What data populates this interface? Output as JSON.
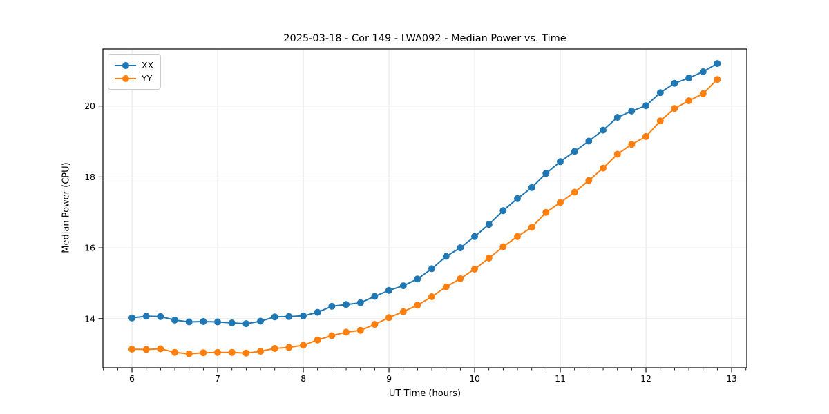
{
  "chart_data": {
    "type": "line",
    "title": "2025-03-18 - Cor 149 - LWA092 - Median Power vs. Time",
    "xlabel": "UT Time (hours)",
    "ylabel": "Median Power (CPU)",
    "xlim": [
      5.661,
      13.177
    ],
    "ylim": [
      12.615,
      21.61
    ],
    "xticks": [
      6,
      7,
      8,
      9,
      10,
      11,
      12,
      13
    ],
    "yticks": [
      14,
      16,
      18,
      20
    ],
    "x_minor_step_minutes": 10,
    "grid": true,
    "legend_position": "upper left",
    "grid_color": "#e4e4e4",
    "axis_color": "#000000",
    "x": [
      6.0,
      6.167,
      6.333,
      6.5,
      6.667,
      6.833,
      7.0,
      7.167,
      7.333,
      7.5,
      7.667,
      7.833,
      8.0,
      8.167,
      8.333,
      8.5,
      8.667,
      8.833,
      9.0,
      9.167,
      9.333,
      9.5,
      9.667,
      9.833,
      10.0,
      10.167,
      10.333,
      10.5,
      10.667,
      10.833,
      11.0,
      11.167,
      11.333,
      11.5,
      11.667,
      11.833,
      12.0,
      12.167,
      12.333,
      12.5,
      12.667,
      12.833
    ],
    "series": [
      {
        "name": "XX",
        "color": "#1f77b4",
        "values": [
          14.02,
          14.07,
          14.06,
          13.96,
          13.91,
          13.92,
          13.91,
          13.88,
          13.86,
          13.93,
          14.05,
          14.06,
          14.08,
          14.18,
          14.35,
          14.4,
          14.45,
          14.63,
          14.8,
          14.93,
          15.12,
          15.41,
          15.76,
          16.0,
          16.32,
          16.66,
          17.05,
          17.39,
          17.7,
          18.1,
          18.43,
          18.72,
          19.01,
          19.32,
          19.68,
          19.86,
          20.01,
          20.38,
          20.64,
          20.79,
          20.97,
          21.2
        ]
      },
      {
        "name": "YY",
        "color": "#ff7f0e",
        "values": [
          13.14,
          13.13,
          13.15,
          13.05,
          13.01,
          13.04,
          13.05,
          13.05,
          13.03,
          13.08,
          13.16,
          13.19,
          13.25,
          13.4,
          13.52,
          13.62,
          13.67,
          13.84,
          14.03,
          14.2,
          14.38,
          14.62,
          14.9,
          15.13,
          15.4,
          15.71,
          16.03,
          16.32,
          16.58,
          17.0,
          17.28,
          17.57,
          17.9,
          18.25,
          18.64,
          18.92,
          19.14,
          19.58,
          19.93,
          20.15,
          20.35,
          20.75
        ]
      }
    ]
  }
}
